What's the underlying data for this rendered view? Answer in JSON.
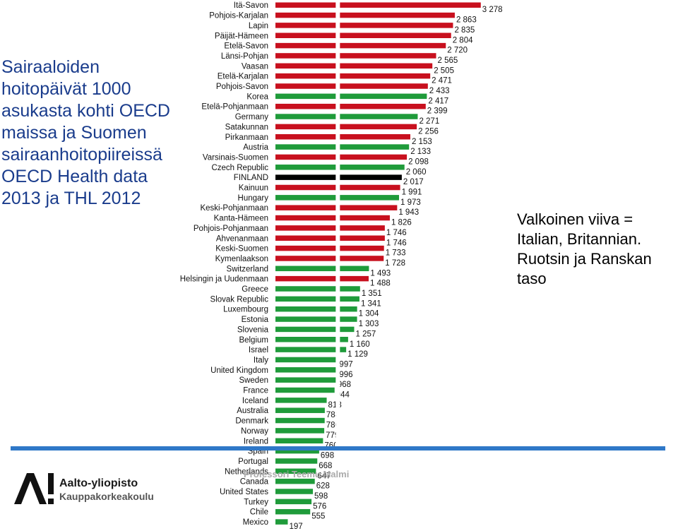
{
  "heading": "Sairaaloiden hoitopäivät 1000 asukasta kohti OECD maissa ja Suomen sairaanhoitopiireissä OECD Health data 2013 ja THL 2012",
  "note": "Valkoinen viiva = Italian, Britannian. Ruotsin ja Ranskan taso",
  "footer": "Professori Teemu Malmi",
  "logo": {
    "line1": "Aalto-yliopisto",
    "line2": "Kauppakorkeakoulu",
    "mark": "aalto-a-logo"
  },
  "colors": {
    "region": "#c8101e",
    "country": "#1f9b3a",
    "finland": "#000000",
    "divider": "#2f78c8",
    "title": "#1a3c8c"
  },
  "chart_data": {
    "type": "bar",
    "orientation": "horizontal",
    "categories": [
      "Itä-Savon",
      "Pohjois-Karjalan",
      "Lapin",
      "Päijät-Hämeen",
      "Etelä-Savon",
      "Länsi-Pohjan",
      "Vaasan",
      "Etelä-Karjalan",
      "Pohjois-Savon",
      "Korea",
      "Etelä-Pohjanmaan",
      "Germany",
      "Satakunnan",
      "Pirkanmaan",
      "Austria",
      "Varsinais-Suomen",
      "Czech Republic",
      "FINLAND",
      "Kainuun",
      "Hungary",
      "Keski-Pohjanmaan",
      "Kanta-Hämeen",
      "Pohjois-Pohjanmaan",
      "Ahvenanmaan",
      "Keski-Suomen",
      "Kymenlaakson",
      "Switzerland",
      "Helsingin ja Uudenmaan",
      "Greece",
      "Slovak Republic",
      "Luxembourg",
      "Estonia",
      "Slovenia",
      "Belgium",
      "Israel",
      "Italy",
      "United Kingdom",
      "Sweden",
      "France",
      "Iceland",
      "Australia",
      "Denmark",
      "Norway",
      "Ireland",
      "Spain",
      "Portugal",
      "Netherlands",
      "Canada",
      "United States",
      "Turkey",
      "Chile",
      "Mexico"
    ],
    "values": [
      3278,
      2863,
      2835,
      2804,
      2720,
      2565,
      2505,
      2471,
      2433,
      2417,
      2399,
      2271,
      2256,
      2153,
      2133,
      2098,
      2060,
      2017,
      1991,
      1973,
      1943,
      1826,
      1746,
      1746,
      1733,
      1728,
      1493,
      1488,
      1351,
      1341,
      1304,
      1303,
      1257,
      1160,
      1129,
      997,
      996,
      968,
      944,
      818,
      788,
      786,
      779,
      760,
      698,
      668,
      647,
      628,
      598,
      576,
      555,
      197
    ],
    "value_labels": [
      "3 278",
      "2 863",
      "2 835",
      "2 804",
      "2 720",
      "2 565",
      "2 505",
      "2 471",
      "2 433",
      "2 417",
      "2 399",
      "2 271",
      "2 256",
      "2 153",
      "2 133",
      "2 098",
      "2 060",
      "2 017",
      "1 991",
      "1 973",
      "1 943",
      "1 826",
      "1 746",
      "1 746",
      "1 733",
      "1 728",
      "1 493",
      "1 488",
      "1 351",
      "1 341",
      "1 304",
      "1 303",
      "1 257",
      "1 160",
      "1 129",
      "997",
      "996",
      "968",
      "944",
      "818",
      "788",
      "786",
      "779",
      "760",
      "698",
      "668",
      "647",
      "628",
      "598",
      "576",
      "555",
      "197"
    ],
    "group": [
      "region",
      "region",
      "region",
      "region",
      "region",
      "region",
      "region",
      "region",
      "region",
      "country",
      "region",
      "country",
      "region",
      "region",
      "country",
      "region",
      "country",
      "finland",
      "region",
      "country",
      "region",
      "region",
      "region",
      "region",
      "region",
      "region",
      "country",
      "region",
      "country",
      "country",
      "country",
      "country",
      "country",
      "country",
      "country",
      "country",
      "country",
      "country",
      "country",
      "country",
      "country",
      "country",
      "country",
      "country",
      "country",
      "country",
      "country",
      "country",
      "country",
      "country",
      "country",
      "country"
    ],
    "reference_line_value": 996,
    "xlim": [
      0,
      3278
    ]
  }
}
